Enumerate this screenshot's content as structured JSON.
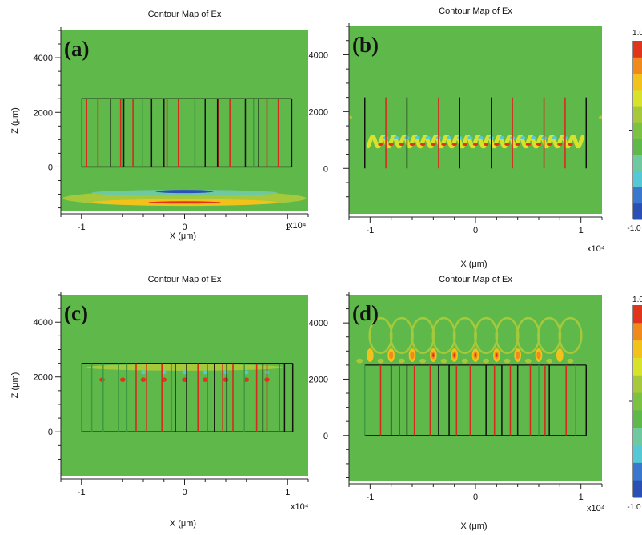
{
  "chart_data": [
    {
      "type": "heatmap",
      "panel_label": "(a)",
      "title": "Contour Map of Ex",
      "xlabel": "X (μm)",
      "ylabel": "Z (μm)",
      "x_tick_labels": [
        "-1",
        "0",
        "1"
      ],
      "x_exponent": "x10⁴",
      "y_tick_labels": [
        "0",
        "2000",
        "4000"
      ],
      "xlim": [
        -12000,
        12000
      ],
      "ylim": [
        -1600,
        5000
      ],
      "structure": {
        "z_bottom": 0,
        "z_top": 2500,
        "red_lines_x": [
          -9500,
          -8400,
          -6200,
          -5000,
          -1700,
          -600,
          3300,
          4400,
          8000,
          9100
        ],
        "black_lines_x": [
          -7200,
          -5900,
          -3200,
          -2000,
          2000,
          3200,
          5900,
          7200,
          10400
        ],
        "green_lines_x": [
          -10000,
          -4100,
          1000,
          6700
        ]
      },
      "field_features": [
        {
          "kind": "band",
          "x_center": 0,
          "x_halfwidth": 11800,
          "z_center": -1150,
          "z_halfwidth": 280,
          "value": 0.18
        },
        {
          "kind": "band",
          "x_center": 0,
          "x_halfwidth": 9000,
          "z_center": -1300,
          "z_halfwidth": 120,
          "value": 0.55
        },
        {
          "kind": "band",
          "x_center": 0,
          "x_halfwidth": 9000,
          "z_center": -950,
          "z_halfwidth": 110,
          "value": -0.45
        },
        {
          "kind": "band",
          "x_center": 0,
          "x_halfwidth": 3500,
          "z_center": -1300,
          "z_halfwidth": 45,
          "value": 0.95
        },
        {
          "kind": "band",
          "x_center": 0,
          "x_halfwidth": 2800,
          "z_center": -900,
          "z_halfwidth": 60,
          "value": -0.9
        }
      ]
    },
    {
      "type": "heatmap",
      "panel_label": "(b)",
      "title": "Contour Map of Ex",
      "xlabel": "X (μm)",
      "ylabel": "",
      "x_tick_labels": [
        "-1",
        "0",
        "1"
      ],
      "x_exponent": "x10⁴",
      "y_tick_labels": [
        "0",
        "2000",
        "4000"
      ],
      "xlim": [
        -12000,
        12000
      ],
      "ylim": [
        -1600,
        5000
      ],
      "structure": {
        "z_bottom": 0,
        "z_top": 2500,
        "red_lines_x": [
          -8500,
          -3500,
          3500,
          6500,
          8500
        ],
        "black_lines_x": [
          -10500,
          -6500,
          -1500,
          1500,
          10500
        ],
        "green_lines_x": []
      },
      "field_features": [
        {
          "kind": "wave",
          "x_from": -10300,
          "x_to": 10300,
          "z_center": 950,
          "amplitude": 180,
          "period": 1000,
          "z_halfwidth": 70,
          "value": 0.3
        },
        {
          "kind": "dots",
          "x_from": -9000,
          "x_to": 9000,
          "step": 1000,
          "z": 850,
          "dx": 240,
          "dz": 55,
          "value": 0.9
        },
        {
          "kind": "dots",
          "x_from": -8500,
          "x_to": 8500,
          "step": 1000,
          "z": 1080,
          "dx": 240,
          "dz": 55,
          "value": -0.6
        },
        {
          "kind": "dots",
          "x_from": -12000,
          "x_to": 12000,
          "step": 24000,
          "z": 1800,
          "dx": 320,
          "dz": 60,
          "value": 0.25
        }
      ]
    },
    {
      "type": "heatmap",
      "panel_label": "(c)",
      "title": "Contour Map of Ex",
      "xlabel": "X (μm)",
      "ylabel": "Z (μm)",
      "x_tick_labels": [
        "-1",
        "0",
        "1"
      ],
      "x_exponent": "x10⁴",
      "y_tick_labels": [
        "0",
        "2000",
        "4000"
      ],
      "xlim": [
        -12000,
        12000
      ],
      "ylim": [
        -1600,
        5000
      ],
      "structure": {
        "z_bottom": 0,
        "z_top": 2500,
        "red_lines_x": [
          -4700,
          -3700,
          -2200,
          -1300,
          1300,
          2200,
          3700,
          4700,
          7000,
          8000,
          9200
        ],
        "black_lines_x": [
          -900,
          200,
          2900,
          4100,
          7600,
          9700,
          10500
        ],
        "green_lines_x": [
          -10000,
          -9000,
          -7900,
          -6400,
          -5600,
          5800
        ]
      },
      "field_features": [
        {
          "kind": "band",
          "x_center": 0,
          "x_halfwidth": 9500,
          "z_center": 2350,
          "z_halfwidth": 120,
          "value": 0.2
        },
        {
          "kind": "dots",
          "x_from": -8000,
          "x_to": 8000,
          "step": 2000,
          "z": 1900,
          "dx": 260,
          "dz": 80,
          "value": 0.9
        },
        {
          "kind": "dots",
          "x_from": -4000,
          "x_to": 8000,
          "step": 2000,
          "z": 2170,
          "dx": 220,
          "dz": 70,
          "value": -0.6
        }
      ]
    },
    {
      "type": "heatmap",
      "panel_label": "(d)",
      "title": "Contour Map of Ex",
      "xlabel": "X (μm)",
      "ylabel": "",
      "x_tick_labels": [
        "-1",
        "0",
        "1"
      ],
      "x_exponent": "x10⁴",
      "y_tick_labels": [
        "0",
        "2000",
        "4000"
      ],
      "xlim": [
        -12000,
        12000
      ],
      "ylim": [
        -1600,
        5000
      ],
      "structure": {
        "z_bottom": 0,
        "z_top": 2500,
        "red_lines_x": [
          -9000,
          -7200,
          -5800,
          -4300,
          -1800,
          -500,
          1800,
          3300,
          5200,
          6600,
          8600
        ],
        "black_lines_x": [
          -8000,
          -6500,
          -3500,
          -2500,
          1000,
          2500,
          4000,
          7000,
          10500
        ],
        "green_lines_x": [
          -10500,
          6000,
          9500
        ]
      },
      "field_features": [
        {
          "kind": "arches",
          "x_from": -9000,
          "x_to": 9000,
          "step": 2000,
          "z": 3550,
          "rx": 1050,
          "rz": 620,
          "value": 0.2
        },
        {
          "kind": "dots",
          "x_from": -10000,
          "x_to": 8000,
          "step": 2000,
          "z": 2850,
          "dx": 330,
          "dz": 240,
          "value": 0.55
        },
        {
          "kind": "dots",
          "x_from": -8000,
          "x_to": 6000,
          "step": 2000,
          "z": 2850,
          "dx": 200,
          "dz": 140,
          "value": 0.8
        },
        {
          "kind": "dots",
          "x_from": -4000,
          "x_to": 2000,
          "step": 2000,
          "z": 2850,
          "dx": 90,
          "dz": 70,
          "value": 1.0
        },
        {
          "kind": "dots",
          "x_from": -11000,
          "x_to": 9000,
          "step": 2000,
          "z": 2650,
          "dx": 300,
          "dz": 80,
          "value": 0.2
        }
      ]
    }
  ],
  "colorbar": {
    "min_label": "-1.0",
    "max_label": "1.0",
    "colors": [
      "#2a4fb5",
      "#3a78cf",
      "#55c8d6",
      "#6ec9a0",
      "#5fb94a",
      "#7cc242",
      "#a5c93a",
      "#d8e22a",
      "#f3c21a",
      "#f08a1c",
      "#e0341c"
    ]
  },
  "colors": {
    "background_field": "#5fb94a",
    "red_line": "#d72a1d",
    "black_line": "#111111",
    "green_line": "#3d9a40"
  }
}
